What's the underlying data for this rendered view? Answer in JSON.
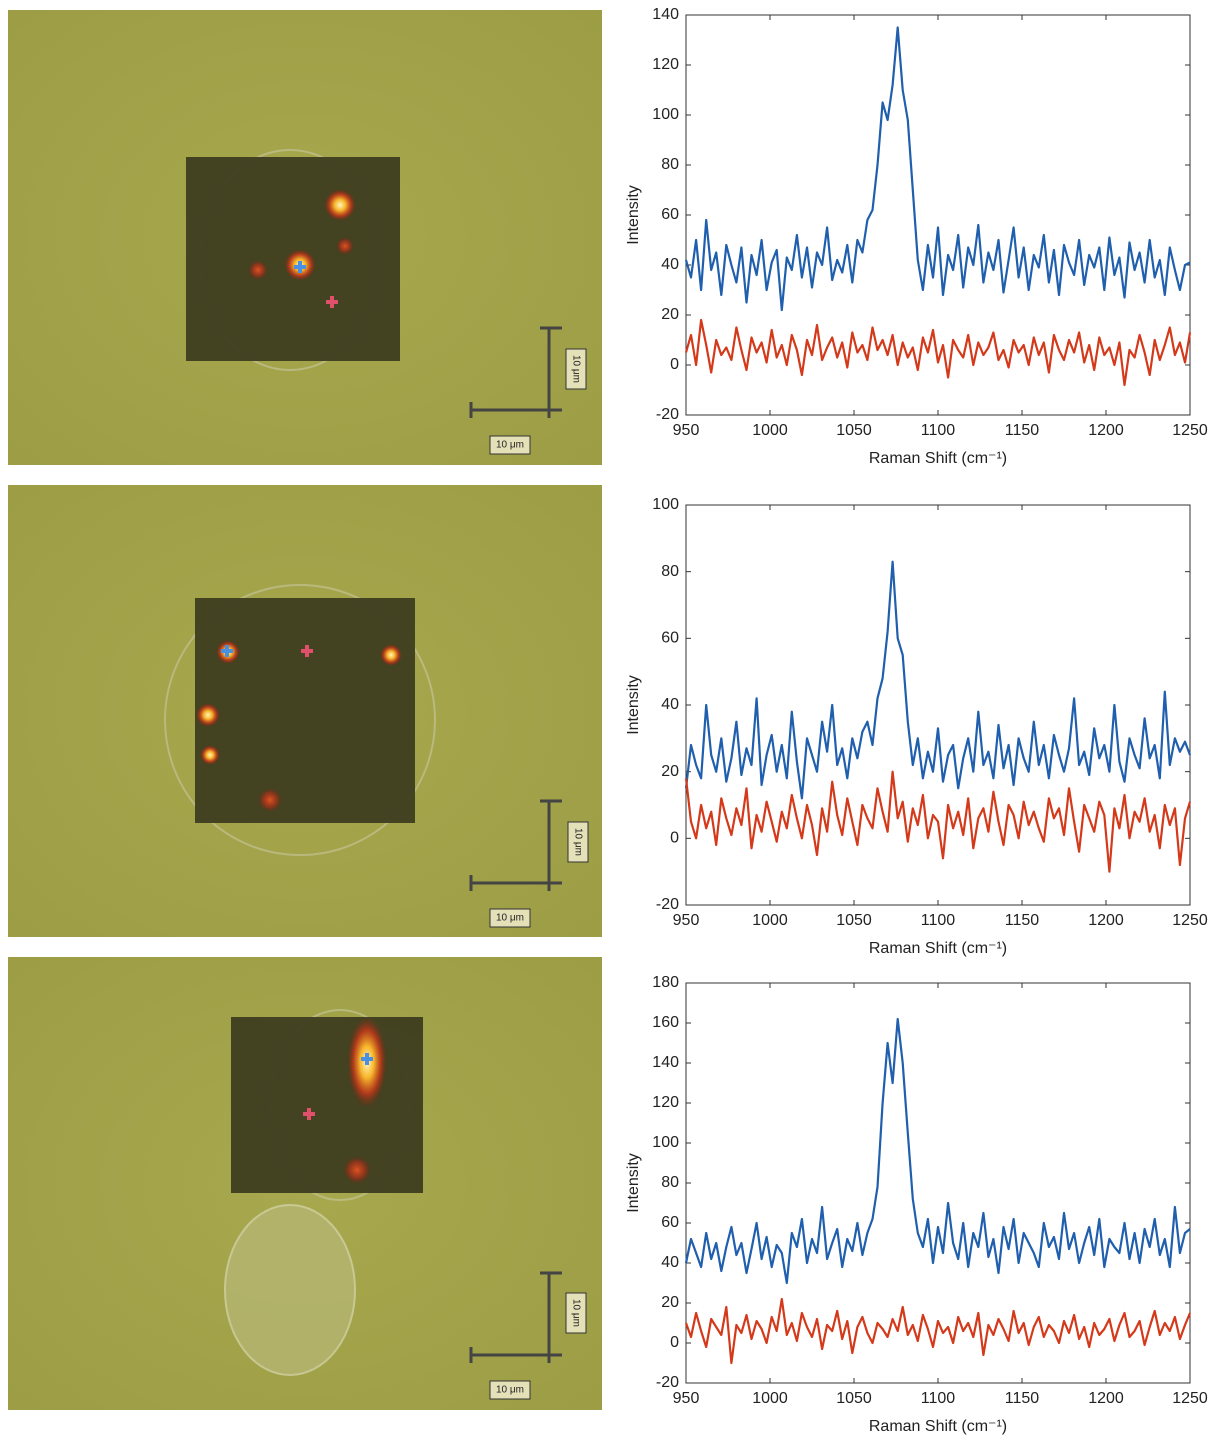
{
  "chart_data": [
    {
      "type": "line",
      "xlabel": "Raman Shift (cm⁻¹)",
      "ylabel": "Intensity",
      "xlim": [
        950,
        1250
      ],
      "xticks": [
        950,
        1000,
        1050,
        1100,
        1150,
        1200,
        1250
      ],
      "ylim": [
        -20,
        140
      ],
      "yticks": [
        -20,
        0,
        20,
        40,
        60,
        80,
        100,
        120,
        140
      ],
      "x": [
        950,
        953,
        956,
        959,
        962,
        965,
        968,
        971,
        974,
        977,
        980,
        983,
        986,
        989,
        992,
        995,
        998,
        1001,
        1004,
        1007,
        1010,
        1013,
        1016,
        1019,
        1022,
        1025,
        1028,
        1031,
        1034,
        1037,
        1040,
        1043,
        1046,
        1049,
        1052,
        1055,
        1058,
        1061,
        1064,
        1067,
        1070,
        1073,
        1076,
        1079,
        1082,
        1085,
        1088,
        1091,
        1094,
        1097,
        1100,
        1103,
        1106,
        1109,
        1112,
        1115,
        1118,
        1121,
        1124,
        1127,
        1130,
        1133,
        1136,
        1139,
        1142,
        1145,
        1148,
        1151,
        1154,
        1157,
        1160,
        1163,
        1166,
        1169,
        1172,
        1175,
        1178,
        1181,
        1184,
        1187,
        1190,
        1193,
        1196,
        1199,
        1202,
        1205,
        1208,
        1211,
        1214,
        1217,
        1220,
        1223,
        1226,
        1229,
        1232,
        1235,
        1238,
        1241,
        1244,
        1247,
        1250
      ],
      "series": [
        {
          "color": "#1f5fae",
          "values": [
            42,
            35,
            50,
            30,
            58,
            38,
            45,
            28,
            48,
            40,
            33,
            47,
            25,
            44,
            36,
            50,
            30,
            41,
            46,
            22,
            43,
            38,
            52,
            35,
            47,
            31,
            45,
            40,
            55,
            34,
            42,
            37,
            48,
            33,
            50,
            45,
            58,
            62,
            80,
            105,
            98,
            112,
            135,
            110,
            98,
            70,
            42,
            30,
            48,
            35,
            55,
            28,
            44,
            38,
            52,
            31,
            47,
            40,
            56,
            33,
            45,
            38,
            50,
            29,
            42,
            55,
            35,
            47,
            30,
            44,
            39,
            52,
            33,
            46,
            28,
            48,
            41,
            36,
            50,
            32,
            44,
            39,
            47,
            30,
            51,
            36,
            43,
            27,
            49,
            38,
            45,
            33,
            50,
            35,
            42,
            28,
            47,
            38,
            30,
            40,
            41
          ]
        },
        {
          "color": "#d4391a",
          "values": [
            5,
            12,
            0,
            18,
            8,
            -3,
            10,
            4,
            7,
            2,
            15,
            6,
            -2,
            11,
            5,
            9,
            1,
            14,
            3,
            8,
            0,
            12,
            6,
            -4,
            10,
            4,
            16,
            2,
            7,
            11,
            3,
            9,
            -1,
            13,
            5,
            8,
            2,
            15,
            6,
            10,
            4,
            12,
            0,
            9,
            3,
            7,
            -2,
            11,
            5,
            14,
            1,
            8,
            -5,
            10,
            6,
            3,
            12,
            0,
            9,
            4,
            7,
            13,
            2,
            6,
            -1,
            10,
            5,
            8,
            0,
            11,
            4,
            9,
            -3,
            12,
            6,
            2,
            10,
            5,
            13,
            1,
            8,
            -2,
            11,
            4,
            7,
            0,
            9,
            -8,
            6,
            3,
            12,
            5,
            -4,
            10,
            2,
            8,
            15,
            4,
            9,
            1,
            13
          ]
        }
      ]
    },
    {
      "type": "line",
      "xlabel": "Raman Shift (cm⁻¹)",
      "ylabel": "Intensity",
      "xlim": [
        950,
        1250
      ],
      "xticks": [
        950,
        1000,
        1050,
        1100,
        1150,
        1200,
        1250
      ],
      "ylim": [
        -20,
        100
      ],
      "yticks": [
        -20,
        0,
        20,
        40,
        60,
        80,
        100
      ],
      "x": [
        950,
        953,
        956,
        959,
        962,
        965,
        968,
        971,
        974,
        977,
        980,
        983,
        986,
        989,
        992,
        995,
        998,
        1001,
        1004,
        1007,
        1010,
        1013,
        1016,
        1019,
        1022,
        1025,
        1028,
        1031,
        1034,
        1037,
        1040,
        1043,
        1046,
        1049,
        1052,
        1055,
        1058,
        1061,
        1064,
        1067,
        1070,
        1073,
        1076,
        1079,
        1082,
        1085,
        1088,
        1091,
        1094,
        1097,
        1100,
        1103,
        1106,
        1109,
        1112,
        1115,
        1118,
        1121,
        1124,
        1127,
        1130,
        1133,
        1136,
        1139,
        1142,
        1145,
        1148,
        1151,
        1154,
        1157,
        1160,
        1163,
        1166,
        1169,
        1172,
        1175,
        1178,
        1181,
        1184,
        1187,
        1190,
        1193,
        1196,
        1199,
        1202,
        1205,
        1208,
        1211,
        1214,
        1217,
        1220,
        1223,
        1226,
        1229,
        1232,
        1235,
        1238,
        1241,
        1244,
        1247,
        1250
      ],
      "series": [
        {
          "color": "#1f5fae",
          "values": [
            15,
            28,
            22,
            18,
            40,
            25,
            20,
            30,
            17,
            24,
            35,
            19,
            27,
            22,
            42,
            16,
            25,
            31,
            20,
            28,
            18,
            38,
            23,
            12,
            30,
            25,
            20,
            35,
            26,
            40,
            22,
            27,
            18,
            30,
            24,
            32,
            35,
            28,
            42,
            48,
            62,
            83,
            60,
            55,
            35,
            22,
            30,
            18,
            26,
            20,
            33,
            17,
            25,
            28,
            15,
            24,
            30,
            20,
            38,
            22,
            26,
            18,
            34,
            21,
            28,
            16,
            30,
            24,
            20,
            35,
            22,
            28,
            18,
            31,
            25,
            20,
            27,
            42,
            22,
            26,
            19,
            33,
            24,
            28,
            20,
            40,
            23,
            17,
            30,
            25,
            21,
            36,
            24,
            28,
            18,
            44,
            22,
            30,
            26,
            29,
            25
          ]
        },
        {
          "color": "#d4391a",
          "values": [
            18,
            5,
            0,
            10,
            3,
            8,
            -2,
            12,
            6,
            1,
            9,
            4,
            15,
            -3,
            7,
            2,
            11,
            5,
            -1,
            8,
            3,
            13,
            6,
            0,
            10,
            4,
            -5,
            9,
            2,
            17,
            7,
            1,
            12,
            5,
            -2,
            10,
            6,
            3,
            15,
            8,
            2,
            20,
            6,
            11,
            -1,
            9,
            4,
            13,
            0,
            7,
            5,
            -6,
            10,
            3,
            8,
            1,
            12,
            -3,
            6,
            9,
            2,
            14,
            5,
            -2,
            10,
            7,
            0,
            11,
            4,
            8,
            3,
            -1,
            12,
            6,
            9,
            1,
            15,
            5,
            -4,
            10,
            6,
            2,
            11,
            7,
            -10,
            9,
            3,
            13,
            0,
            8,
            5,
            12,
            2,
            7,
            -3,
            10,
            4,
            9,
            -8,
            6,
            11
          ]
        }
      ]
    },
    {
      "type": "line",
      "xlabel": "Raman Shift (cm⁻¹)",
      "ylabel": "Intensity",
      "xlim": [
        950,
        1250
      ],
      "xticks": [
        950,
        1000,
        1050,
        1100,
        1150,
        1200,
        1250
      ],
      "ylim": [
        -20,
        180
      ],
      "yticks": [
        -20,
        0,
        20,
        40,
        60,
        80,
        100,
        120,
        140,
        160,
        180
      ],
      "x": [
        950,
        953,
        956,
        959,
        962,
        965,
        968,
        971,
        974,
        977,
        980,
        983,
        986,
        989,
        992,
        995,
        998,
        1001,
        1004,
        1007,
        1010,
        1013,
        1016,
        1019,
        1022,
        1025,
        1028,
        1031,
        1034,
        1037,
        1040,
        1043,
        1046,
        1049,
        1052,
        1055,
        1058,
        1061,
        1064,
        1067,
        1070,
        1073,
        1076,
        1079,
        1082,
        1085,
        1088,
        1091,
        1094,
        1097,
        1100,
        1103,
        1106,
        1109,
        1112,
        1115,
        1118,
        1121,
        1124,
        1127,
        1130,
        1133,
        1136,
        1139,
        1142,
        1145,
        1148,
        1151,
        1154,
        1157,
        1160,
        1163,
        1166,
        1169,
        1172,
        1175,
        1178,
        1181,
        1184,
        1187,
        1190,
        1193,
        1196,
        1199,
        1202,
        1205,
        1208,
        1211,
        1214,
        1217,
        1220,
        1223,
        1226,
        1229,
        1232,
        1235,
        1238,
        1241,
        1244,
        1247,
        1250
      ],
      "series": [
        {
          "color": "#1f5fae",
          "values": [
            40,
            52,
            45,
            38,
            55,
            42,
            50,
            36,
            48,
            58,
            44,
            50,
            35,
            47,
            60,
            42,
            53,
            38,
            49,
            45,
            30,
            55,
            48,
            62,
            40,
            52,
            45,
            68,
            42,
            50,
            57,
            38,
            52,
            46,
            60,
            44,
            55,
            62,
            78,
            120,
            150,
            130,
            162,
            140,
            105,
            72,
            55,
            48,
            62,
            40,
            58,
            45,
            70,
            50,
            42,
            60,
            38,
            55,
            48,
            65,
            43,
            52,
            35,
            58,
            47,
            62,
            40,
            55,
            50,
            45,
            38,
            60,
            48,
            53,
            42,
            65,
            47,
            55,
            40,
            50,
            58,
            44,
            62,
            38,
            52,
            48,
            45,
            60,
            42,
            55,
            40,
            57,
            48,
            62,
            44,
            52,
            38,
            68,
            45,
            55,
            57
          ]
        },
        {
          "color": "#d4391a",
          "values": [
            10,
            3,
            15,
            6,
            -2,
            12,
            8,
            4,
            18,
            -10,
            9,
            5,
            14,
            2,
            11,
            7,
            0,
            13,
            6,
            22,
            4,
            10,
            1,
            15,
            8,
            3,
            12,
            -3,
            9,
            6,
            16,
            2,
            11,
            -5,
            8,
            13,
            5,
            0,
            10,
            7,
            3,
            12,
            6,
            18,
            4,
            9,
            1,
            14,
            7,
            -2,
            11,
            5,
            8,
            0,
            13,
            6,
            10,
            3,
            15,
            -6,
            9,
            4,
            12,
            7,
            1,
            16,
            5,
            10,
            -1,
            8,
            13,
            3,
            9,
            6,
            0,
            11,
            5,
            14,
            2,
            8,
            -2,
            10,
            4,
            7,
            12,
            1,
            9,
            15,
            3,
            6,
            11,
            -1,
            8,
            16,
            4,
            10,
            6,
            13,
            2,
            9,
            15
          ]
        }
      ]
    }
  ],
  "micrographs": [
    {
      "scale_x": "10 μm",
      "scale_y": "10 μm"
    },
    {
      "scale_x": "10 μm",
      "scale_y": "10 μm"
    },
    {
      "scale_x": "10 μm",
      "scale_y": "10 μm"
    }
  ]
}
